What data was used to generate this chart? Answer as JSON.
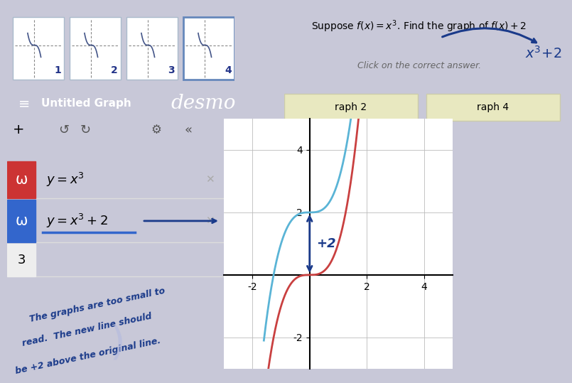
{
  "fig_w": 7.85,
  "fig_h": 5.09,
  "fig_bg": "#c8c8d8",
  "header_bg": "#2a2a2a",
  "toolbar_bg": "#e0e0e0",
  "sidebar_bg": "#f0f0f0",
  "thumb_bg": "#c8c8d8",
  "graph_bg": "#ffffff",
  "graph_grid_color": "#bbbbbb",
  "curve_blue_color": "#5ab4d6",
  "curve_red_color": "#c94040",
  "annot_color": "#1a3a8a",
  "button_color": "#e8e8c0",
  "sidebar_title": "Untitled Graph",
  "desmos_text": "desmo",
  "eq1": "y = x^3",
  "eq2": "y = x^3 + 2",
  "title_line": "Suppose  f(x) = x^3.  Find the graph of  f(x) + 2",
  "click_text": "Click on the correct answer.",
  "comment_text": "The graphs are too small to\nread.  The new line should\nbe +2 above the original line.",
  "graph_xlim": [
    -3,
    5
  ],
  "graph_ylim": [
    -3,
    5
  ],
  "graph_xticks": [
    -2,
    0,
    2,
    4
  ],
  "graph_yticks": [
    -2,
    0,
    2,
    4
  ],
  "icon1_color": "#cc3333",
  "icon2_color": "#3366cc"
}
